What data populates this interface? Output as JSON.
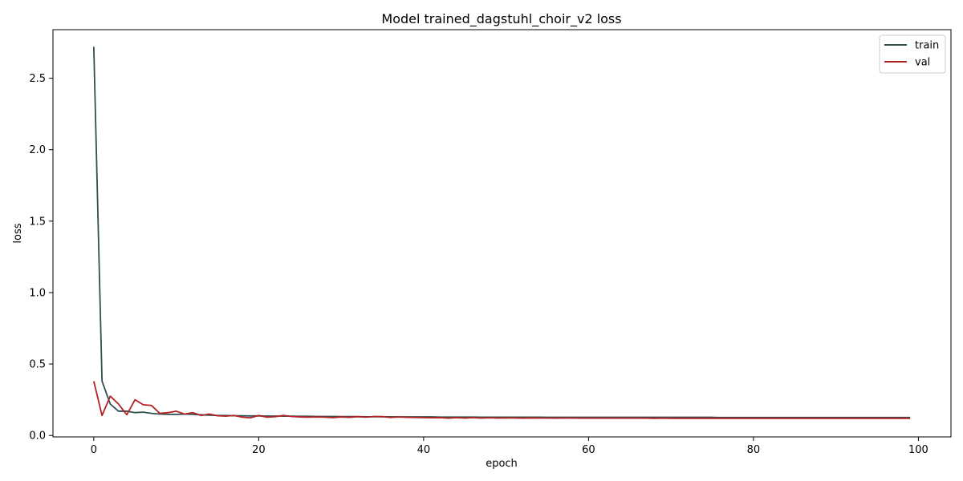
{
  "chart_data": {
    "type": "line",
    "title": "Model trained_dagstuhl_choir_v2 loss",
    "xlabel": "epoch",
    "ylabel": "loss",
    "xlim": [
      -4.95,
      103.95
    ],
    "ylim": [
      -0.01,
      2.84
    ],
    "xticks": [
      0,
      20,
      40,
      60,
      80,
      100
    ],
    "yticks": [
      0.0,
      0.5,
      1.0,
      1.5,
      2.0,
      2.5
    ],
    "xtick_labels": [
      "0",
      "20",
      "40",
      "60",
      "80",
      "100"
    ],
    "ytick_labels": [
      "0.0",
      "0.5",
      "1.0",
      "1.5",
      "2.0",
      "2.5"
    ],
    "grid": false,
    "legend_position": "top-right",
    "series": [
      {
        "name": "train",
        "color": "#2f4f4f",
        "values": [
          2.72,
          0.38,
          0.22,
          0.17,
          0.17,
          0.16,
          0.163,
          0.155,
          0.15,
          0.148,
          0.147,
          0.15,
          0.148,
          0.145,
          0.142,
          0.14,
          0.14,
          0.138,
          0.138,
          0.137,
          0.137,
          0.136,
          0.136,
          0.135,
          0.135,
          0.134,
          0.134,
          0.133,
          0.133,
          0.133,
          0.132,
          0.132,
          0.132,
          0.131,
          0.131,
          0.131,
          0.131,
          0.13,
          0.13,
          0.13,
          0.13,
          0.13,
          0.129,
          0.129,
          0.129,
          0.129,
          0.129,
          0.128,
          0.128,
          0.128,
          0.128,
          0.128,
          0.128,
          0.128,
          0.128,
          0.127,
          0.127,
          0.127,
          0.127,
          0.127,
          0.127,
          0.127,
          0.127,
          0.127,
          0.127,
          0.127,
          0.127,
          0.127,
          0.127,
          0.127,
          0.127,
          0.127,
          0.127,
          0.127,
          0.127,
          0.127,
          0.126,
          0.126,
          0.126,
          0.126,
          0.126,
          0.126,
          0.126,
          0.126,
          0.126,
          0.126,
          0.126,
          0.126,
          0.126,
          0.126,
          0.126,
          0.126,
          0.126,
          0.126,
          0.126,
          0.126,
          0.126,
          0.126,
          0.126,
          0.126
        ]
      },
      {
        "name": "val",
        "color": "#b22222",
        "values": [
          0.38,
          0.14,
          0.275,
          0.22,
          0.145,
          0.25,
          0.215,
          0.21,
          0.155,
          0.16,
          0.17,
          0.15,
          0.16,
          0.14,
          0.15,
          0.138,
          0.135,
          0.14,
          0.128,
          0.124,
          0.14,
          0.128,
          0.132,
          0.14,
          0.133,
          0.13,
          0.128,
          0.13,
          0.128,
          0.125,
          0.13,
          0.127,
          0.132,
          0.128,
          0.133,
          0.132,
          0.126,
          0.13,
          0.127,
          0.126,
          0.125,
          0.124,
          0.125,
          0.121,
          0.125,
          0.122,
          0.125,
          0.122,
          0.124,
          0.122,
          0.123,
          0.123,
          0.121,
          0.123,
          0.122,
          0.122,
          0.121,
          0.122,
          0.122,
          0.121,
          0.121,
          0.121,
          0.121,
          0.121,
          0.121,
          0.121,
          0.121,
          0.121,
          0.12,
          0.121,
          0.12,
          0.12,
          0.12,
          0.12,
          0.12,
          0.12,
          0.12,
          0.12,
          0.12,
          0.12,
          0.12,
          0.12,
          0.12,
          0.12,
          0.12,
          0.12,
          0.12,
          0.12,
          0.12,
          0.12,
          0.12,
          0.12,
          0.12,
          0.12,
          0.12,
          0.12,
          0.12,
          0.12,
          0.12,
          0.12
        ]
      }
    ]
  }
}
